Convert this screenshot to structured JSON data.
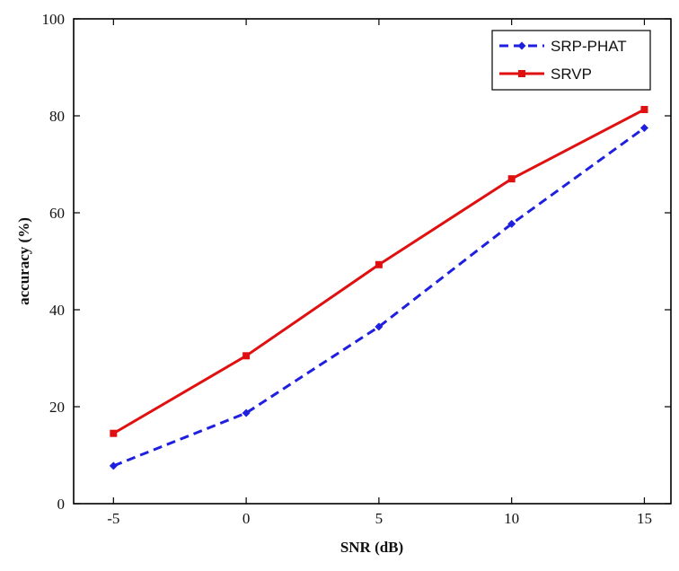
{
  "chart_data": {
    "type": "line",
    "title": "",
    "xlabel": "SNR (dB)",
    "ylabel": "accuracy (%)",
    "x": [
      -5,
      0,
      5,
      10,
      15
    ],
    "x_tick_labels": [
      "-5",
      "0",
      "5",
      "10",
      "15"
    ],
    "y_tick_labels": [
      "0",
      "20",
      "40",
      "60",
      "80",
      "100"
    ],
    "xlim": [
      -6.5,
      16
    ],
    "ylim": [
      0,
      100
    ],
    "grid": false,
    "legend_position": "top-right",
    "series": [
      {
        "name": "SRP-PHAT",
        "values": [
          7.8,
          18.7,
          36.5,
          57.7,
          77.5
        ],
        "color": "#1f1fe0",
        "line_style": "dashed",
        "marker": "diamond"
      },
      {
        "name": "SRVP",
        "values": [
          14.5,
          30.5,
          49.3,
          67.0,
          81.3
        ],
        "color": "#e01010",
        "line_style": "solid",
        "marker": "square"
      }
    ]
  }
}
